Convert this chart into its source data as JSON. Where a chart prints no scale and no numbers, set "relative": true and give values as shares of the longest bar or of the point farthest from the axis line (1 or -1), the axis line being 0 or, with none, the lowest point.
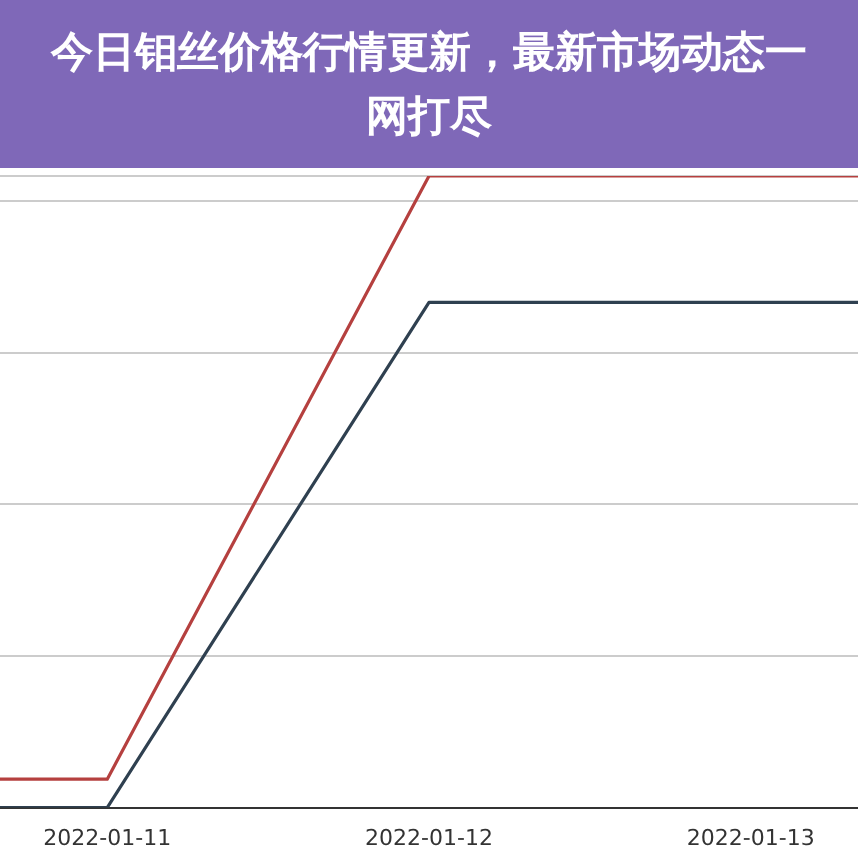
{
  "chart_data": {
    "type": "line",
    "title": "今日钼丝价格行情更新，最新市场动态一网打尽",
    "relative": true,
    "x": [
      "2022-01-10T16:00",
      "2022-01-11",
      "2022-01-12",
      "2022-01-13",
      "2022-01-13T08:00"
    ],
    "xlim": [
      "2022-01-10T16:00",
      "2022-01-13T08:00"
    ],
    "xticks": [
      "2022-01-11",
      "2022-01-12",
      "2022-01-13"
    ],
    "series": [
      {
        "color": "#b5403f",
        "values": [
          0.045,
          0.045,
          1,
          1,
          1
        ]
      },
      {
        "color": "#2f4050",
        "values": [
          0,
          0,
          0.8,
          0.8,
          0.8
        ]
      }
    ],
    "grid": "y",
    "marker": "none",
    "line_style": "solid",
    "legend": false
  }
}
